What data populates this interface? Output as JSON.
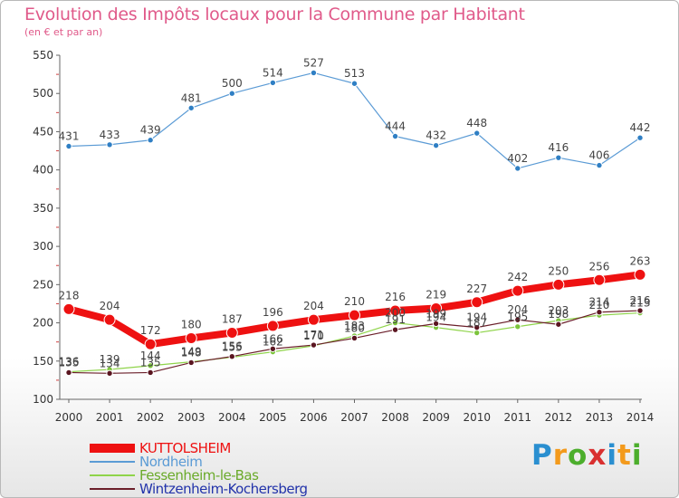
{
  "header": {
    "title": "Evolution des Impôts locaux pour la Commune par Habitant",
    "subtitle": "(en € et par an)"
  },
  "logo": {
    "letters": [
      "P",
      "r",
      "o",
      "x",
      "i",
      "t",
      "i"
    ],
    "colors": [
      "#2a8fd0",
      "#f39a1c",
      "#4cae2c",
      "#d93030",
      "#2a8fd0",
      "#f39a1c",
      "#4cae2c"
    ]
  },
  "chart_data": {
    "type": "line",
    "title": "Evolution des Impôts locaux pour la Commune par Habitant",
    "subtitle": "(en € et par an)",
    "x": [
      "2000",
      "2001",
      "2002",
      "2003",
      "2004",
      "2005",
      "2006",
      "2007",
      "2008",
      "2009",
      "2010",
      "2011",
      "2012",
      "2013",
      "2014"
    ],
    "ylim": [
      100,
      550
    ],
    "yticks": [
      100,
      150,
      200,
      250,
      300,
      350,
      400,
      450,
      500,
      550
    ],
    "grid": false,
    "legend_position": "bottom-left",
    "series": [
      {
        "name": "Nordheim",
        "color": "#5b9bd5",
        "values": [
          431,
          433,
          439,
          481,
          500,
          514,
          527,
          513,
          444,
          432,
          448,
          402,
          416,
          406,
          442
        ]
      },
      {
        "name": "Fessenheim-le-Bas",
        "color": "#8fd44a",
        "values": [
          136,
          139,
          144,
          149,
          155,
          162,
          170,
          183,
          200,
          194,
          187,
          195,
          203,
          210,
          213
        ]
      },
      {
        "name": "Wintzenheim-Kochersberg",
        "color": "#6b1f2a",
        "values": [
          135,
          134,
          135,
          148,
          156,
          166,
          171,
          180,
          191,
          199,
          194,
          204,
          198,
          214,
          216
        ]
      },
      {
        "name": "KUTTOLSHEIM",
        "color": "#ee1111",
        "values": [
          218,
          204,
          172,
          180,
          187,
          196,
          204,
          210,
          216,
          219,
          227,
          242,
          250,
          256,
          263
        ]
      }
    ],
    "legend_order": [
      "KUTTOLSHEIM",
      "Nordheim",
      "Fessenheim-le-Bas",
      "Wintzenheim-Kochersberg"
    ]
  }
}
